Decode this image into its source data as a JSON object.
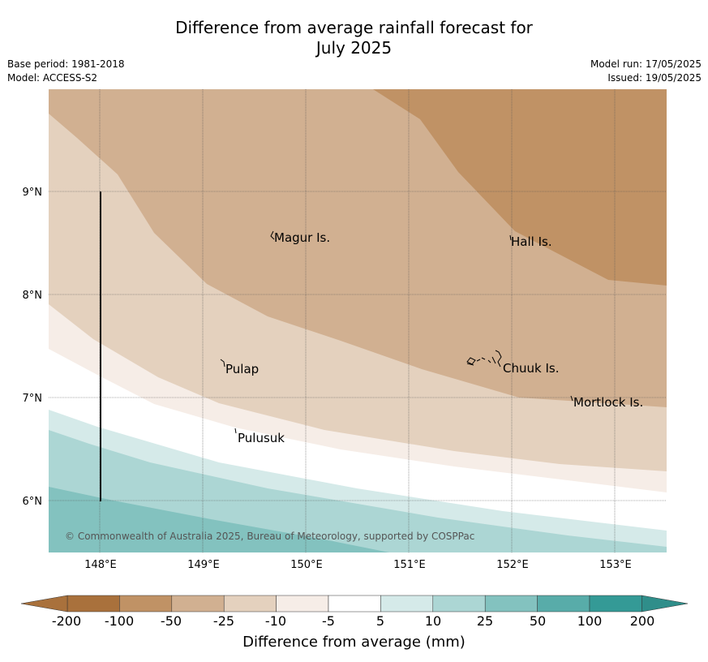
{
  "title": {
    "line1": "Difference from average rainfall forecast for",
    "line2": "July 2025"
  },
  "meta": {
    "base_period": "Base period: 1981-2018",
    "model": "Model: ACCESS-S2",
    "model_run": "Model run: 17/05/2025",
    "issued": "Issued: 19/05/2025"
  },
  "map": {
    "lon_labels": [
      "148°E",
      "149°E",
      "150°E",
      "151°E",
      "152°E",
      "153°E"
    ],
    "lat_labels": [
      "9°N",
      "8°N",
      "7°N",
      "6°N"
    ],
    "places": [
      "Magur Is.",
      "Hall Is.",
      "Pulap",
      "Chuuk Is.",
      "Mortlock Is.",
      "Pulusuk"
    ],
    "copyright": "© Commonwealth of Australia 2025, Bureau of Meteorology, supported by COSPPac"
  },
  "colorbar": {
    "ticks": [
      "-200",
      "-100",
      "-50",
      "-25",
      "-10",
      "-5",
      "5",
      "10",
      "25",
      "50",
      "100",
      "200"
    ],
    "colors": [
      "#a9713c",
      "#c09265",
      "#d1b091",
      "#e4d1be",
      "#f6ede7",
      "#ffffff",
      "#d5eae9",
      "#acd6d4",
      "#83c2bf",
      "#58aca9",
      "#349a96"
    ],
    "under_color": "#a9713c",
    "over_color": "#2f8e8a",
    "title": "Difference from average (mm)"
  },
  "colors": {
    "grid": "#555555",
    "coast": "#000000"
  }
}
